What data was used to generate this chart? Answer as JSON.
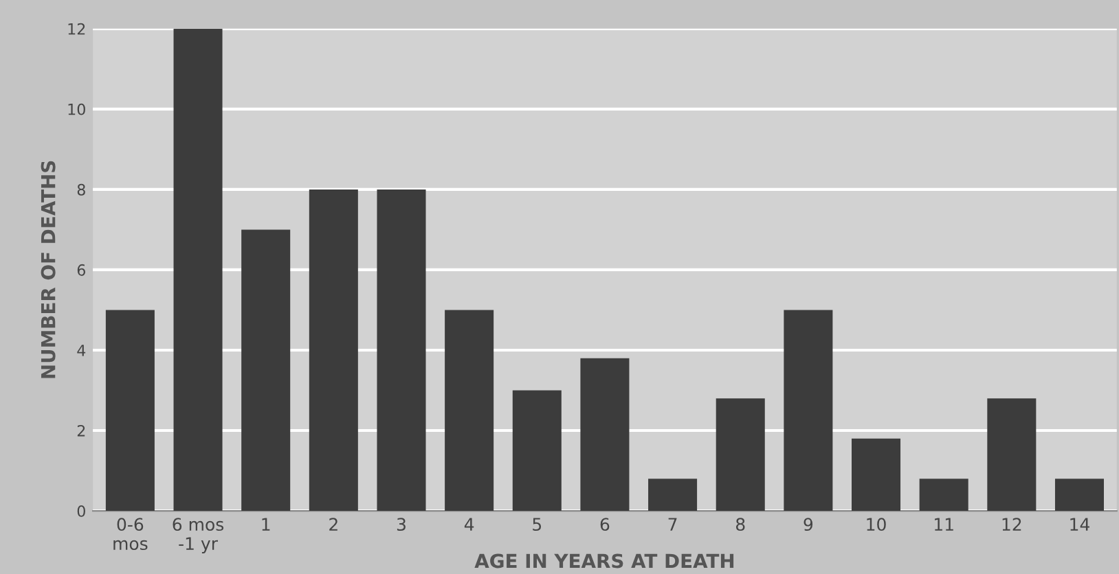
{
  "chart_data": {
    "type": "bar",
    "xlabel": "AGE IN YEARS AT DEATH",
    "ylabel": "NUMBER OF DEATHS",
    "categories": [
      "0-6\nmos",
      "6 mos\n-1 yr",
      "1",
      "2",
      "3",
      "4",
      "5",
      "6",
      "7",
      "8",
      "9",
      "10",
      "11",
      "12",
      "14"
    ],
    "values": [
      5,
      12,
      7,
      8,
      8,
      5,
      3,
      3.8,
      0.8,
      2.8,
      5,
      1.8,
      0.8,
      2.8,
      0.8
    ],
    "color": "#3c3c3c",
    "ylim": [
      0,
      12
    ],
    "yticks": [
      0,
      2,
      4,
      6,
      8,
      10,
      12
    ],
    "grid": "y"
  }
}
